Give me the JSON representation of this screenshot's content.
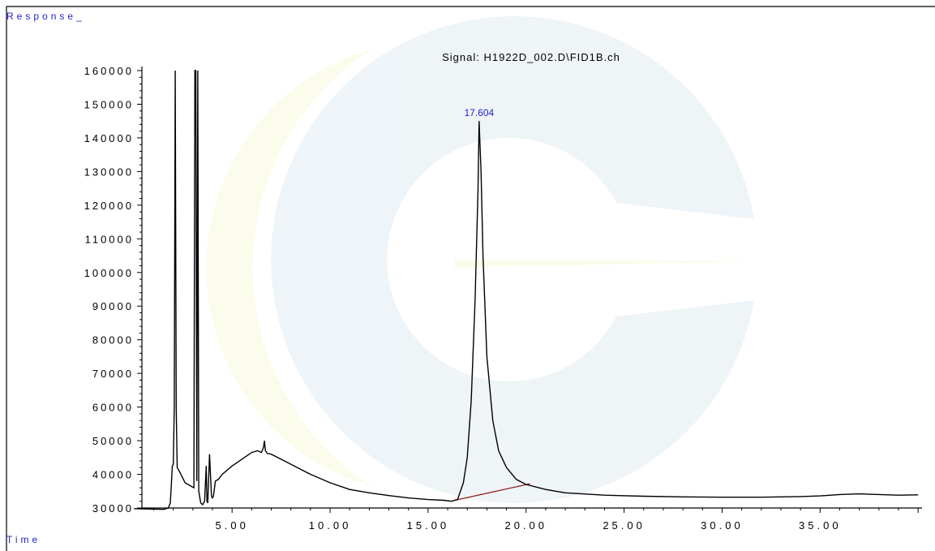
{
  "chart_data": {
    "type": "line",
    "ylabel": "Response_",
    "xlabel": "Time",
    "annotation_signal": "Signal: H1922D_002.D\\FID1B.ch",
    "peak_label": "17.604",
    "peak_time": 17.604,
    "xlim": [
      0,
      40
    ],
    "ylim": [
      30000,
      160000
    ],
    "x_tick_labels": [
      "5.00",
      "10.00",
      "15.00",
      "20.00",
      "25.00",
      "30.00",
      "35.00"
    ],
    "x_ticks": [
      5,
      10,
      15,
      20,
      25,
      30,
      35
    ],
    "y_tick_labels": [
      "160000",
      "150000",
      "140000",
      "130000",
      "120000",
      "110000",
      "100000",
      "90000",
      "80000",
      "70000",
      "60000",
      "50000",
      "40000",
      "30000"
    ],
    "y_ticks": [
      160000,
      150000,
      140000,
      130000,
      120000,
      110000,
      100000,
      90000,
      80000,
      70000,
      60000,
      50000,
      40000,
      30000
    ],
    "series": [
      {
        "x": [
          0,
          1.5,
          1.75,
          1.85,
          1.9,
          1.95,
          2.0,
          2.05,
          2.1,
          2.15,
          2.2,
          2.35,
          2.6,
          2.9,
          3.05,
          3.1,
          3.15,
          3.2,
          3.25,
          3.3,
          3.4,
          3.5,
          3.6,
          3.68,
          3.72,
          3.76,
          3.85,
          3.95,
          4.0,
          4.05,
          4.15,
          4.3,
          4.5,
          5.0,
          5.5,
          6.0,
          6.3,
          6.5,
          6.6,
          6.65,
          6.7,
          6.8,
          7.0,
          7.5,
          8.0,
          9.0,
          10.0,
          11.0,
          12.0,
          13.0,
          14.0,
          15.0,
          15.8,
          16.2,
          16.5,
          16.8,
          17.0,
          17.2,
          17.4,
          17.55,
          17.604,
          17.7,
          17.8,
          18.0,
          18.3,
          18.6,
          19.0,
          19.5,
          20.0,
          21.0,
          22.0,
          24.0,
          26.0,
          28.0,
          30.0,
          32.0,
          34.0,
          35.0,
          36.0,
          37.0,
          38.0,
          39.0,
          40.0
        ],
        "y": [
          29800,
          29600,
          30000,
          31500,
          37000,
          42500,
          43000,
          60000,
          160000,
          60000,
          42000,
          40500,
          37500,
          36500,
          36000,
          160000,
          160000,
          38000,
          160000,
          35000,
          31500,
          31000,
          32000,
          42500,
          32000,
          31500,
          46000,
          33500,
          33000,
          33500,
          38000,
          38500,
          40000,
          42500,
          44500,
          46500,
          47000,
          46500,
          48000,
          50000,
          47000,
          46200,
          46000,
          44500,
          43000,
          40000,
          37500,
          35500,
          34500,
          33700,
          33000,
          32500,
          32300,
          32000,
          32500,
          37500,
          45000,
          62000,
          92000,
          125000,
          145000,
          130000,
          105000,
          75000,
          56000,
          47000,
          42000,
          38500,
          37000,
          35500,
          34500,
          33800,
          33500,
          33300,
          33200,
          33200,
          33400,
          33600,
          34000,
          34200,
          34000,
          33800,
          33900
        ]
      }
    ],
    "baseline_segment": {
      "x": [
        16.3,
        20.2
      ],
      "y": [
        32200,
        37200
      ]
    },
    "grid": false
  }
}
